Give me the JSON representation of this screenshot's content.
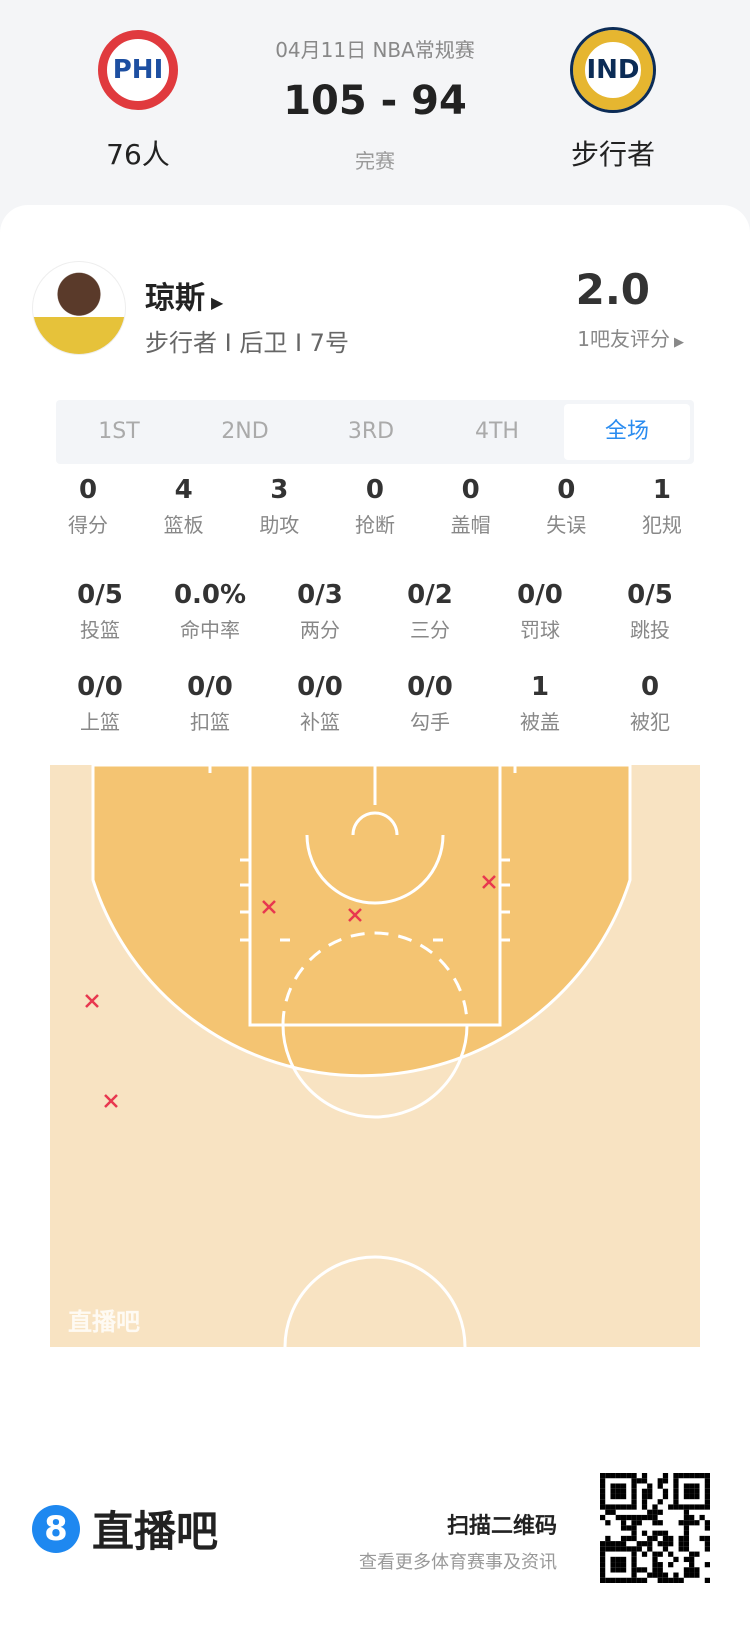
{
  "game": {
    "date_league": "04月11日 NBA常规赛",
    "score": "105 - 94",
    "status": "完赛",
    "home": {
      "abbr": "PHI",
      "name": "76人"
    },
    "away": {
      "abbr": "IND",
      "name": "步行者"
    }
  },
  "player": {
    "name": "琼斯",
    "info": "步行者 I 后卫 I 7号",
    "rating": "2.0",
    "rating_label": "1吧友评分"
  },
  "tabs": [
    {
      "label": "1ST"
    },
    {
      "label": "2ND"
    },
    {
      "label": "3RD"
    },
    {
      "label": "4TH"
    },
    {
      "label": "全场",
      "active": true
    }
  ],
  "stats": [
    [
      {
        "v": "0",
        "l": "得分"
      },
      {
        "v": "4",
        "l": "篮板"
      },
      {
        "v": "3",
        "l": "助攻"
      },
      {
        "v": "0",
        "l": "抢断"
      },
      {
        "v": "0",
        "l": "盖帽"
      },
      {
        "v": "0",
        "l": "失误"
      },
      {
        "v": "1",
        "l": "犯规"
      }
    ],
    [
      {
        "v": "0/5",
        "l": "投篮"
      },
      {
        "v": "0.0%",
        "l": "命中率"
      },
      {
        "v": "0/3",
        "l": "两分"
      },
      {
        "v": "0/2",
        "l": "三分"
      },
      {
        "v": "0/0",
        "l": "罚球"
      },
      {
        "v": "0/5",
        "l": "跳投"
      }
    ],
    [
      {
        "v": "0/0",
        "l": "上篮"
      },
      {
        "v": "0/0",
        "l": "扣篮"
      },
      {
        "v": "0/0",
        "l": "补篮"
      },
      {
        "v": "0/0",
        "l": "勾手"
      },
      {
        "v": "1",
        "l": "被盖"
      },
      {
        "v": "0",
        "l": "被犯"
      }
    ]
  ],
  "court": {
    "watermark": "直播吧",
    "miss_color": "#e8384f",
    "shots_missed": 5,
    "shots_made": 0
  },
  "footer": {
    "brand_mark": "8",
    "brand": "直播吧",
    "qr_title": "扫描二维码",
    "qr_sub": "查看更多体育赛事及资讯"
  }
}
